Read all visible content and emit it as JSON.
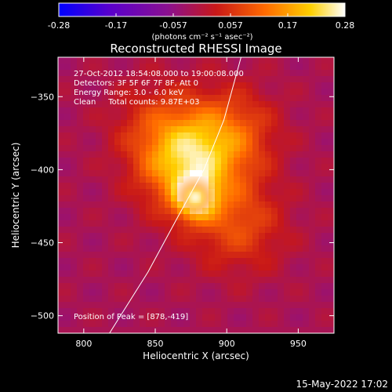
{
  "colorbar": {
    "ticks": [
      "-0.28",
      "-0.17",
      "-0.057",
      "0.057",
      "0.17",
      "0.28"
    ],
    "unit_label": "(photons cm⁻² s⁻¹ asec⁻²)",
    "range": [
      -0.28,
      0.28
    ],
    "colors": [
      "#0000ff",
      "#5a00cc",
      "#8a1090",
      "#c81818",
      "#ff6a00",
      "#ffd000",
      "#ffffff"
    ]
  },
  "info": {
    "line1": "27-Oct-2012 18:54:08.000 to 19:00:08.000",
    "line2": "Detectors: 3F 5F 6F 7F 8F, Att 0",
    "line3": "Energy Range: 3.0 - 6.0 keV",
    "line4": "Clean     Total counts: 9.87E+03",
    "peak": "Position of Peak = [878,-419]"
  },
  "timestamp": "15-May-2022 17:02",
  "chart_data": {
    "type": "heatmap",
    "title": "Reconstructed RHESSI Image",
    "xlabel": "Heliocentric X (arcsec)",
    "ylabel": "Heliocentric Y (arcsec)",
    "xlim": [
      782,
      975
    ],
    "ylim": [
      -512,
      -323
    ],
    "x_ticks": [
      800,
      850,
      900,
      950
    ],
    "y_ticks": [
      -350,
      -400,
      -450,
      -500
    ],
    "peak": {
      "x": 878,
      "y": -419,
      "value": 0.28
    },
    "sources": [
      {
        "x": 878,
        "y": -419,
        "value": 0.28
      },
      {
        "x": 868,
        "y": -400,
        "value": 0.13
      },
      {
        "x": 880,
        "y": -388,
        "value": 0.11
      },
      {
        "x": 905,
        "y": -375,
        "value": 0.1
      },
      {
        "x": 850,
        "y": -370,
        "value": 0.07
      },
      {
        "x": 900,
        "y": -435,
        "value": 0.06
      },
      {
        "x": 915,
        "y": -440,
        "value": 0.05
      }
    ],
    "limb_curve": [
      [
        818,
        -512
      ],
      [
        845,
        -470
      ],
      [
        866,
        -432
      ],
      [
        884,
        -400
      ],
      [
        898,
        -366
      ],
      [
        910,
        -323
      ]
    ]
  }
}
